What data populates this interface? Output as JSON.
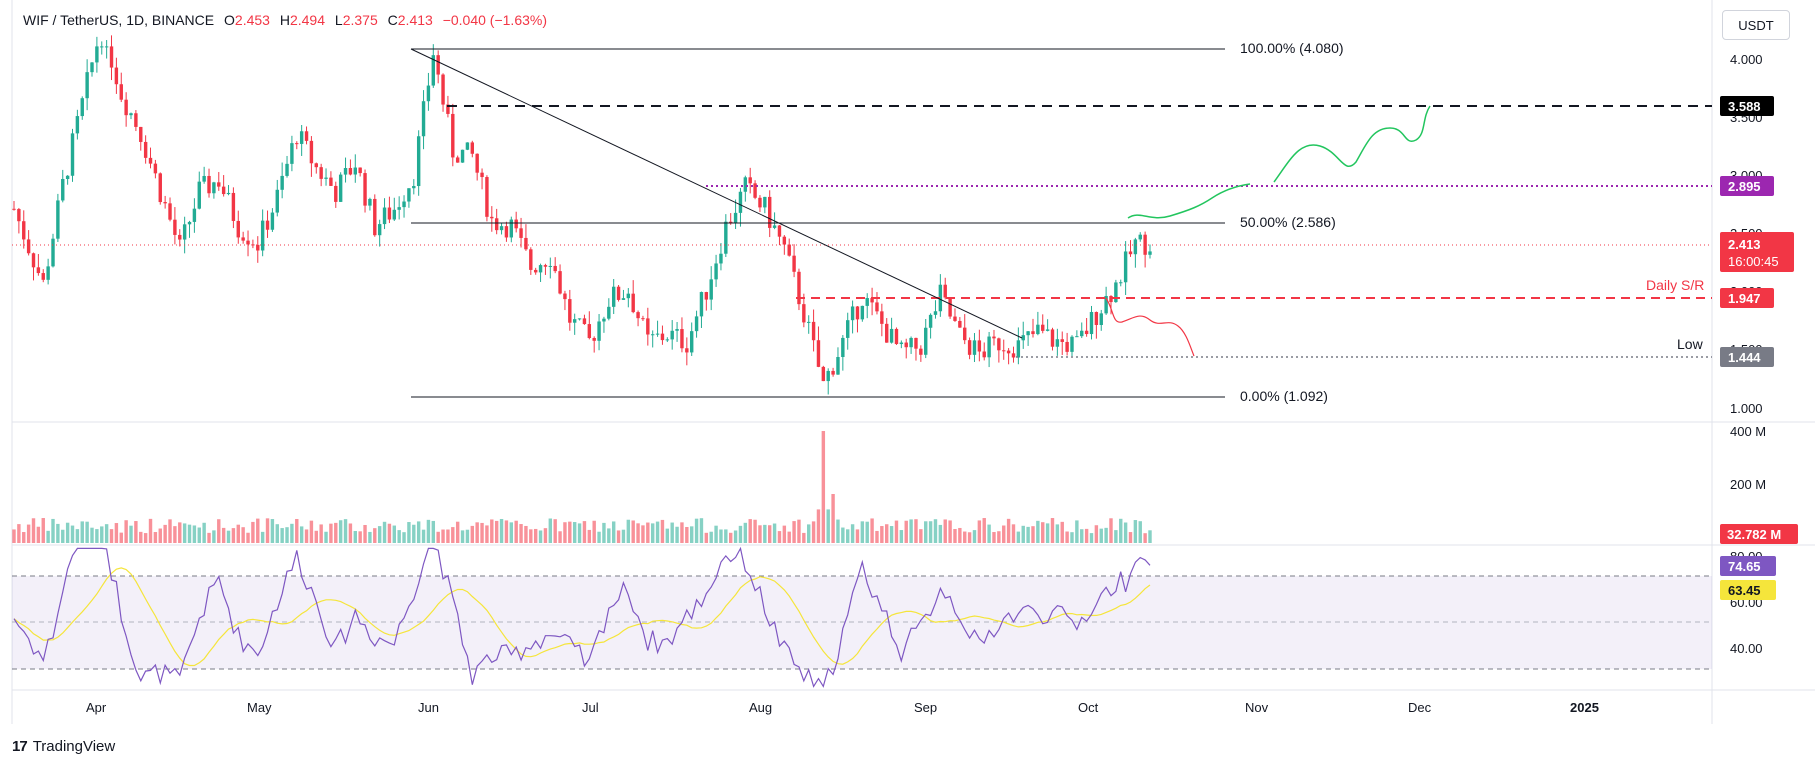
{
  "header": {
    "symbol": "WIF / TetherUS, 1D, BINANCE",
    "o_label": "O",
    "o_value": "2.453",
    "h_label": "H",
    "h_value": "2.494",
    "l_label": "L",
    "l_value": "2.375",
    "c_label": "C",
    "c_value": "2.413",
    "change": "−0.040 (−1.63%)"
  },
  "currency_button": "USDT",
  "branding": "TradingView",
  "colors": {
    "up": "#22ab94",
    "down": "#f23645",
    "purple": "#9c27b0",
    "rsi_line": "#7e57c2",
    "rsi_ma": "#f5e53b",
    "gray": "#787b86"
  },
  "chart_data": {
    "type": "candlestick",
    "title": "WIF / TetherUS, 1D, BINANCE",
    "x_ticks": [
      "Apr",
      "May",
      "Jun",
      "Jul",
      "Aug",
      "Sep",
      "Oct",
      "Nov",
      "Dec",
      "2025"
    ],
    "price_ticks": [
      "4.000",
      "3.500",
      "3.000",
      "2.500",
      "2.000",
      "1.500",
      "1.000"
    ],
    "y_range": [
      0.95,
      4.15
    ],
    "fibonacci": [
      {
        "label": "100.00% (4.080)",
        "value": 4.08
      },
      {
        "label": "50.00% (2.586)",
        "value": 2.586
      },
      {
        "label": "0.00% (1.092)",
        "value": 1.092
      }
    ],
    "levels": [
      {
        "name": "target",
        "value": 3.588,
        "badge": "3.588",
        "style": "dashed-black"
      },
      {
        "name": "resistance",
        "value": 2.895,
        "badge": "2.895",
        "style": "dotted-purple"
      },
      {
        "name": "daily-sr",
        "value": 1.947,
        "badge": "1.947",
        "label": "Daily S/R",
        "style": "dashed-red"
      },
      {
        "name": "low",
        "value": 1.444,
        "badge": "1.444",
        "label": "Low",
        "style": "dotted-gray"
      }
    ],
    "last_price": {
      "value": 2.413,
      "badge": "2.413",
      "countdown": "16:00:45"
    },
    "volume": {
      "ticks": [
        "400 M",
        "200 M"
      ],
      "last": "32.782 M",
      "max": 400
    },
    "rsi": {
      "ticks": [
        "80.00",
        "60.00",
        "40.00"
      ],
      "value": "74.65",
      "ma": "63.45",
      "upper": 70,
      "lower": 30
    }
  }
}
